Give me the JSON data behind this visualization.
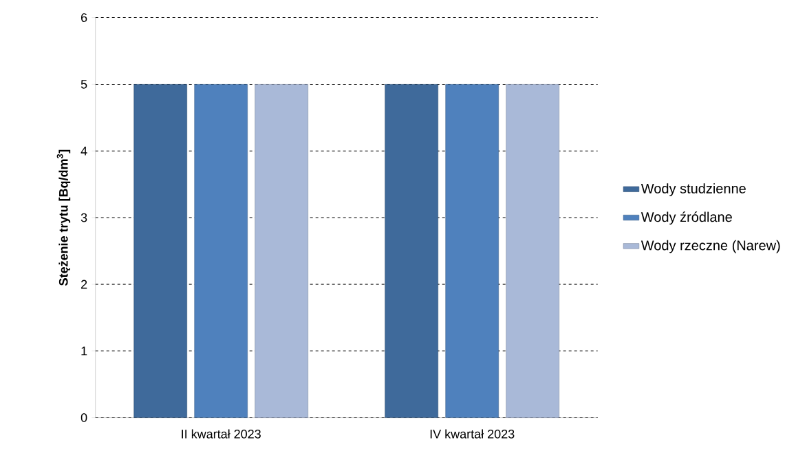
{
  "chart_data": {
    "type": "bar",
    "ylabel": "Stężenie trytu [Bq/dm$^{3}$]",
    "categories": [
      "II kwartał 2023",
      "IV kwartał 2023"
    ],
    "series": [
      {
        "name": "Wody studzienne",
        "color": "#3f6a9b",
        "values": [
          5,
          5
        ]
      },
      {
        "name": "Wody źródlane",
        "color": "#4f81bd",
        "values": [
          5,
          5
        ]
      },
      {
        "name": "Wody rzeczne (Narew)",
        "color": "#a9b9d8",
        "values": [
          5,
          5
        ]
      }
    ],
    "ylim": [
      0,
      6
    ],
    "yticks": [
      0,
      1,
      2,
      3,
      4,
      5,
      6
    ],
    "grid": "y",
    "legend": "right"
  }
}
